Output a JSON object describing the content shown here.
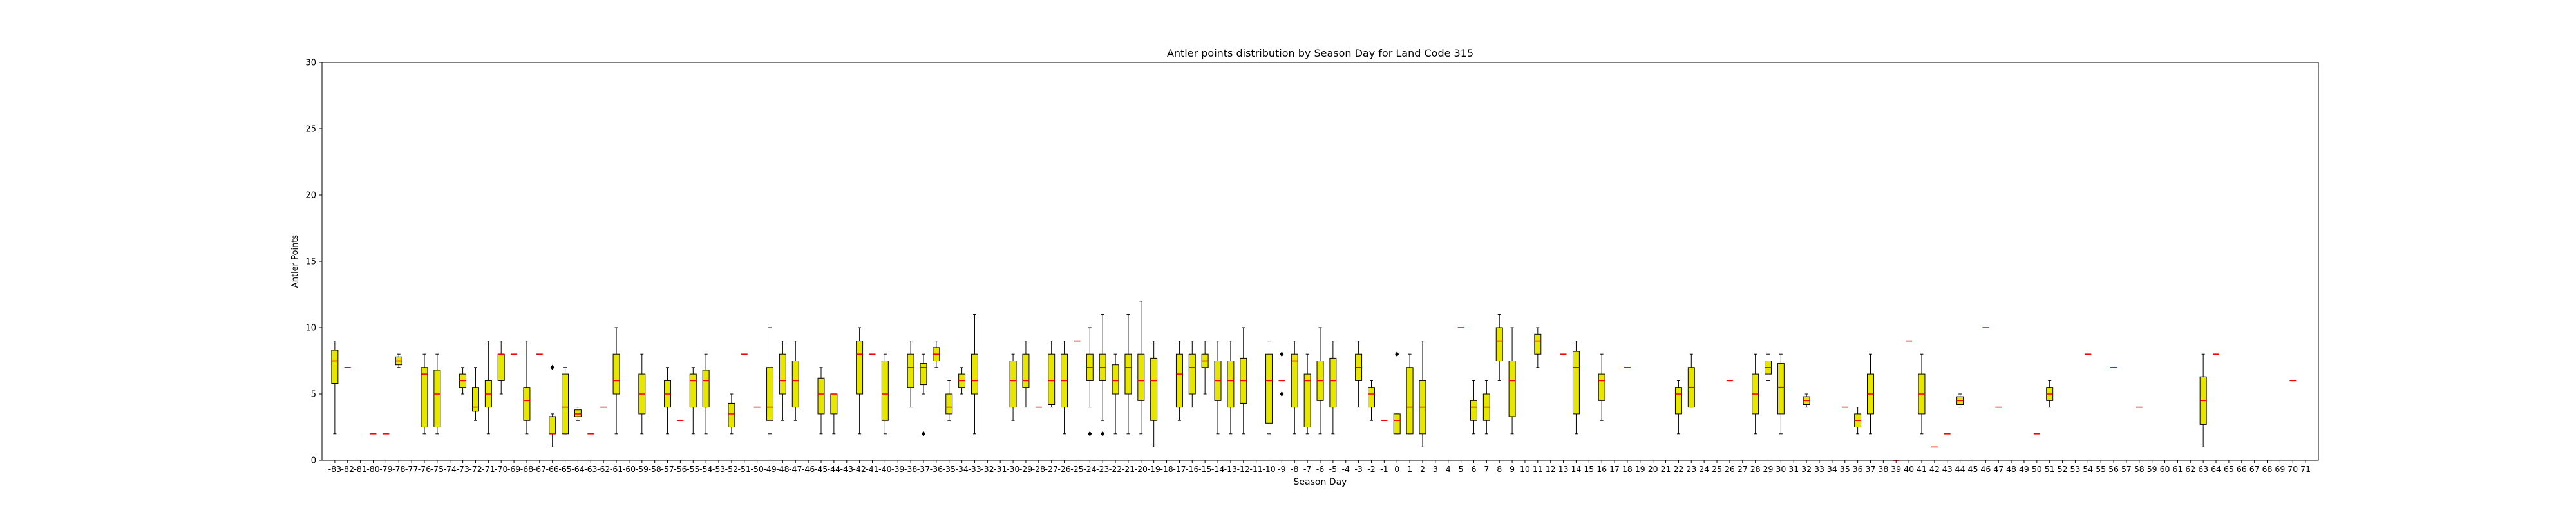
{
  "chart_data": {
    "type": "box",
    "title": "Antler points distribution by Season Day for Land Code 315",
    "xlabel": "Season Day",
    "ylabel": "Antler Points",
    "ylim": [
      0,
      30
    ],
    "yticks": [
      0,
      5,
      10,
      15,
      20,
      25,
      30
    ],
    "x_start": -83,
    "x_end": 71,
    "grid": false,
    "colors": {
      "box_fill": "#e6e600",
      "median": "#ff0000",
      "whisker": "#000000"
    },
    "boxes": [
      {
        "x": -83,
        "q1": 5.8,
        "med": 7.5,
        "q3": 8.3,
        "lo": 2,
        "hi": 9
      },
      {
        "x": -82,
        "q1": 7,
        "med": 7,
        "q3": 7,
        "lo": 7,
        "hi": 7
      },
      {
        "x": -80,
        "q1": 2,
        "med": 2,
        "q3": 2,
        "lo": 2,
        "hi": 2
      },
      {
        "x": -79,
        "q1": 2,
        "med": 2,
        "q3": 2,
        "lo": 2,
        "hi": 2
      },
      {
        "x": -78,
        "q1": 7.2,
        "med": 7.5,
        "q3": 7.8,
        "lo": 7,
        "hi": 8
      },
      {
        "x": -76,
        "q1": 2.5,
        "med": 6.5,
        "q3": 7,
        "lo": 2,
        "hi": 8
      },
      {
        "x": -75,
        "q1": 2.5,
        "med": 5,
        "q3": 6.8,
        "lo": 2,
        "hi": 8
      },
      {
        "x": -73,
        "q1": 5.5,
        "med": 6,
        "q3": 6.5,
        "lo": 5,
        "hi": 7
      },
      {
        "x": -72,
        "q1": 3.7,
        "med": 4,
        "q3": 5.5,
        "lo": 3,
        "hi": 7
      },
      {
        "x": -71,
        "q1": 4,
        "med": 5,
        "q3": 6,
        "lo": 2,
        "hi": 9
      },
      {
        "x": -70,
        "q1": 6,
        "med": 8,
        "q3": 8,
        "lo": 5,
        "hi": 9
      },
      {
        "x": -69,
        "q1": 8,
        "med": 8,
        "q3": 8,
        "lo": 8,
        "hi": 8
      },
      {
        "x": -68,
        "q1": 3,
        "med": 4.5,
        "q3": 5.5,
        "lo": 2,
        "hi": 9
      },
      {
        "x": -67,
        "q1": 8,
        "med": 8,
        "q3": 8,
        "lo": 8,
        "hi": 8
      },
      {
        "x": -66,
        "q1": 2,
        "med": 2,
        "q3": 3.3,
        "lo": 1,
        "hi": 3.5,
        "fliers": [
          7
        ]
      },
      {
        "x": -65,
        "q1": 2,
        "med": 4,
        "q3": 6.5,
        "lo": 2,
        "hi": 7
      },
      {
        "x": -64,
        "q1": 3.3,
        "med": 3.5,
        "q3": 3.8,
        "lo": 3,
        "hi": 4
      },
      {
        "x": -63,
        "q1": 2,
        "med": 2,
        "q3": 2,
        "lo": 2,
        "hi": 2
      },
      {
        "x": -62,
        "q1": 4,
        "med": 4,
        "q3": 4,
        "lo": 4,
        "hi": 4
      },
      {
        "x": -61,
        "q1": 5,
        "med": 6,
        "q3": 8,
        "lo": 2,
        "hi": 10
      },
      {
        "x": -59,
        "q1": 3.5,
        "med": 5,
        "q3": 6.5,
        "lo": 2,
        "hi": 8
      },
      {
        "x": -57,
        "q1": 4,
        "med": 5,
        "q3": 6,
        "lo": 2,
        "hi": 7
      },
      {
        "x": -56,
        "q1": 3,
        "med": 3,
        "q3": 3,
        "lo": 3,
        "hi": 3
      },
      {
        "x": -55,
        "q1": 4,
        "med": 6,
        "q3": 6.5,
        "lo": 2,
        "hi": 7
      },
      {
        "x": -54,
        "q1": 4,
        "med": 6,
        "q3": 6.8,
        "lo": 2,
        "hi": 8
      },
      {
        "x": -52,
        "q1": 2.5,
        "med": 3.5,
        "q3": 4.3,
        "lo": 2,
        "hi": 5
      },
      {
        "x": -51,
        "q1": 8,
        "med": 8,
        "q3": 8,
        "lo": 8,
        "hi": 8
      },
      {
        "x": -50,
        "q1": 4,
        "med": 4,
        "q3": 4,
        "lo": 4,
        "hi": 4
      },
      {
        "x": -49,
        "q1": 3,
        "med": 4,
        "q3": 7,
        "lo": 2,
        "hi": 10
      },
      {
        "x": -48,
        "q1": 5,
        "med": 6,
        "q3": 8,
        "lo": 3,
        "hi": 9
      },
      {
        "x": -47,
        "q1": 4,
        "med": 6,
        "q3": 7.5,
        "lo": 3,
        "hi": 9
      },
      {
        "x": -45,
        "q1": 3.5,
        "med": 5,
        "q3": 6.2,
        "lo": 2,
        "hi": 7
      },
      {
        "x": -44,
        "q1": 3.5,
        "med": 5,
        "q3": 5,
        "lo": 2,
        "hi": 5
      },
      {
        "x": -42,
        "q1": 5,
        "med": 8,
        "q3": 9,
        "lo": 2,
        "hi": 10
      },
      {
        "x": -41,
        "q1": 8,
        "med": 8,
        "q3": 8,
        "lo": 8,
        "hi": 8
      },
      {
        "x": -40,
        "q1": 3,
        "med": 5,
        "q3": 7.5,
        "lo": 2,
        "hi": 8
      },
      {
        "x": -38,
        "q1": 5.5,
        "med": 7,
        "q3": 8,
        "lo": 4,
        "hi": 9
      },
      {
        "x": -37,
        "q1": 5.7,
        "med": 7,
        "q3": 7.3,
        "lo": 5,
        "hi": 8,
        "fliers": [
          2
        ]
      },
      {
        "x": -36,
        "q1": 7.5,
        "med": 8,
        "q3": 8.5,
        "lo": 7,
        "hi": 9
      },
      {
        "x": -35,
        "q1": 3.5,
        "med": 4,
        "q3": 5,
        "lo": 3,
        "hi": 6
      },
      {
        "x": -34,
        "q1": 5.5,
        "med": 6,
        "q3": 6.5,
        "lo": 5,
        "hi": 7
      },
      {
        "x": -33,
        "q1": 5,
        "med": 6,
        "q3": 8,
        "lo": 2,
        "hi": 11
      },
      {
        "x": -30,
        "q1": 4,
        "med": 6,
        "q3": 7.5,
        "lo": 3,
        "hi": 8
      },
      {
        "x": -29,
        "q1": 5.5,
        "med": 6,
        "q3": 8,
        "lo": 4,
        "hi": 9
      },
      {
        "x": -28,
        "q1": 4,
        "med": 4,
        "q3": 4,
        "lo": 4,
        "hi": 4
      },
      {
        "x": -27,
        "q1": 4.2,
        "med": 6,
        "q3": 8,
        "lo": 4,
        "hi": 9
      },
      {
        "x": -26,
        "q1": 4,
        "med": 6,
        "q3": 8,
        "lo": 2,
        "hi": 9
      },
      {
        "x": -25,
        "q1": 9,
        "med": 9,
        "q3": 9,
        "lo": 9,
        "hi": 9
      },
      {
        "x": -24,
        "q1": 6,
        "med": 7,
        "q3": 8,
        "lo": 4,
        "hi": 10,
        "fliers": [
          2
        ]
      },
      {
        "x": -23,
        "q1": 6,
        "med": 7,
        "q3": 8,
        "lo": 3,
        "hi": 11,
        "fliers": [
          2
        ]
      },
      {
        "x": -22,
        "q1": 5,
        "med": 6,
        "q3": 7.2,
        "lo": 2,
        "hi": 8
      },
      {
        "x": -21,
        "q1": 5,
        "med": 7,
        "q3": 8,
        "lo": 2,
        "hi": 11
      },
      {
        "x": -20,
        "q1": 4.5,
        "med": 6,
        "q3": 8,
        "lo": 2,
        "hi": 12
      },
      {
        "x": -19,
        "q1": 3,
        "med": 6,
        "q3": 7.7,
        "lo": 1,
        "hi": 9
      },
      {
        "x": -17,
        "q1": 4,
        "med": 6.5,
        "q3": 8,
        "lo": 3,
        "hi": 9
      },
      {
        "x": -16,
        "q1": 5,
        "med": 7,
        "q3": 8,
        "lo": 4,
        "hi": 9
      },
      {
        "x": -15,
        "q1": 7,
        "med": 7.5,
        "q3": 8,
        "lo": 5,
        "hi": 9
      },
      {
        "x": -14,
        "q1": 4.5,
        "med": 6,
        "q3": 7.5,
        "lo": 2,
        "hi": 9
      },
      {
        "x": -13,
        "q1": 4,
        "med": 6,
        "q3": 7.5,
        "lo": 2,
        "hi": 9
      },
      {
        "x": -12,
        "q1": 4.3,
        "med": 6,
        "q3": 7.7,
        "lo": 2,
        "hi": 10
      },
      {
        "x": -10,
        "q1": 2.8,
        "med": 6,
        "q3": 8,
        "lo": 2,
        "hi": 9
      },
      {
        "x": -9,
        "q1": 6,
        "med": 6,
        "q3": 6,
        "lo": 6,
        "hi": 6,
        "fliers": [
          5,
          8
        ]
      },
      {
        "x": -8,
        "q1": 4,
        "med": 7.5,
        "q3": 8,
        "lo": 2,
        "hi": 9
      },
      {
        "x": -7,
        "q1": 2.5,
        "med": 6,
        "q3": 6.5,
        "lo": 2,
        "hi": 8
      },
      {
        "x": -6,
        "q1": 4.5,
        "med": 6,
        "q3": 7.5,
        "lo": 2,
        "hi": 10
      },
      {
        "x": -5,
        "q1": 4,
        "med": 6,
        "q3": 7.7,
        "lo": 2,
        "hi": 9
      },
      {
        "x": -3,
        "q1": 6,
        "med": 7,
        "q3": 8,
        "lo": 4,
        "hi": 9
      },
      {
        "x": -2,
        "q1": 4,
        "med": 5,
        "q3": 5.5,
        "lo": 3,
        "hi": 6
      },
      {
        "x": -1,
        "q1": 3,
        "med": 3,
        "q3": 3,
        "lo": 3,
        "hi": 3
      },
      {
        "x": 0,
        "q1": 2,
        "med": 3,
        "q3": 3.5,
        "lo": 2,
        "hi": 3.5,
        "fliers": [
          8
        ]
      },
      {
        "x": 1,
        "q1": 2,
        "med": 4,
        "q3": 7,
        "lo": 2,
        "hi": 8
      },
      {
        "x": 2,
        "q1": 2,
        "med": 4,
        "q3": 6,
        "lo": 1,
        "hi": 9
      },
      {
        "x": 5,
        "q1": 10,
        "med": 10,
        "q3": 10,
        "lo": 10,
        "hi": 10
      },
      {
        "x": 6,
        "q1": 3,
        "med": 4,
        "q3": 4.5,
        "lo": 2,
        "hi": 6
      },
      {
        "x": 7,
        "q1": 3,
        "med": 4,
        "q3": 5,
        "lo": 2,
        "hi": 6
      },
      {
        "x": 8,
        "q1": 7.5,
        "med": 9,
        "q3": 10,
        "lo": 6,
        "hi": 11
      },
      {
        "x": 9,
        "q1": 3.3,
        "med": 6,
        "q3": 7.5,
        "lo": 2,
        "hi": 10
      },
      {
        "x": 11,
        "q1": 8,
        "med": 9,
        "q3": 9.5,
        "lo": 7,
        "hi": 10
      },
      {
        "x": 13,
        "q1": 8,
        "med": 8,
        "q3": 8,
        "lo": 8,
        "hi": 8
      },
      {
        "x": 14,
        "q1": 3.5,
        "med": 7,
        "q3": 8.2,
        "lo": 2,
        "hi": 9
      },
      {
        "x": 16,
        "q1": 4.5,
        "med": 6,
        "q3": 6.5,
        "lo": 3,
        "hi": 8
      },
      {
        "x": 18,
        "q1": 7,
        "med": 7,
        "q3": 7,
        "lo": 7,
        "hi": 7
      },
      {
        "x": 22,
        "q1": 3.5,
        "med": 5,
        "q3": 5.5,
        "lo": 2,
        "hi": 6
      },
      {
        "x": 23,
        "q1": 4,
        "med": 5.5,
        "q3": 7,
        "lo": 4,
        "hi": 8
      },
      {
        "x": 26,
        "q1": 6,
        "med": 6,
        "q3": 6,
        "lo": 6,
        "hi": 6
      },
      {
        "x": 28,
        "q1": 3.5,
        "med": 5,
        "q3": 6.5,
        "lo": 2,
        "hi": 8
      },
      {
        "x": 29,
        "q1": 6.5,
        "med": 7,
        "q3": 7.5,
        "lo": 6,
        "hi": 8
      },
      {
        "x": 30,
        "q1": 3.5,
        "med": 5.5,
        "q3": 7.3,
        "lo": 2,
        "hi": 8
      },
      {
        "x": 32,
        "q1": 4.2,
        "med": 4.5,
        "q3": 4.8,
        "lo": 4,
        "hi": 5
      },
      {
        "x": 35,
        "q1": 4,
        "med": 4,
        "q3": 4,
        "lo": 4,
        "hi": 4
      },
      {
        "x": 36,
        "q1": 2.5,
        "med": 3,
        "q3": 3.5,
        "lo": 2,
        "hi": 4
      },
      {
        "x": 37,
        "q1": 3.5,
        "med": 5,
        "q3": 6.5,
        "lo": 2,
        "hi": 8
      },
      {
        "x": 39,
        "q1": 0,
        "med": 0,
        "q3": 0,
        "lo": 0,
        "hi": 0
      },
      {
        "x": 40,
        "q1": 9,
        "med": 9,
        "q3": 9,
        "lo": 9,
        "hi": 9
      },
      {
        "x": 41,
        "q1": 3.5,
        "med": 5,
        "q3": 6.5,
        "lo": 2,
        "hi": 8
      },
      {
        "x": 42,
        "q1": 1,
        "med": 1,
        "q3": 1,
        "lo": 1,
        "hi": 1
      },
      {
        "x": 43,
        "q1": 2,
        "med": 2,
        "q3": 2,
        "lo": 2,
        "hi": 2
      },
      {
        "x": 44,
        "q1": 4.2,
        "med": 4.5,
        "q3": 4.8,
        "lo": 4,
        "hi": 5
      },
      {
        "x": 46,
        "q1": 10,
        "med": 10,
        "q3": 10,
        "lo": 10,
        "hi": 10
      },
      {
        "x": 47,
        "q1": 4,
        "med": 4,
        "q3": 4,
        "lo": 4,
        "hi": 4
      },
      {
        "x": 50,
        "q1": 2,
        "med": 2,
        "q3": 2,
        "lo": 2,
        "hi": 2
      },
      {
        "x": 51,
        "q1": 4.5,
        "med": 5,
        "q3": 5.5,
        "lo": 4,
        "hi": 6
      },
      {
        "x": 54,
        "q1": 8,
        "med": 8,
        "q3": 8,
        "lo": 8,
        "hi": 8
      },
      {
        "x": 56,
        "q1": 7,
        "med": 7,
        "q3": 7,
        "lo": 7,
        "hi": 7
      },
      {
        "x": 58,
        "q1": 4,
        "med": 4,
        "q3": 4,
        "lo": 4,
        "hi": 4
      },
      {
        "x": 63,
        "q1": 2.7,
        "med": 4.5,
        "q3": 6.3,
        "lo": 1,
        "hi": 8
      },
      {
        "x": 64,
        "q1": 8,
        "med": 8,
        "q3": 8,
        "lo": 8,
        "hi": 8
      },
      {
        "x": 70,
        "q1": 6,
        "med": 6,
        "q3": 6,
        "lo": 6,
        "hi": 6
      }
    ]
  }
}
